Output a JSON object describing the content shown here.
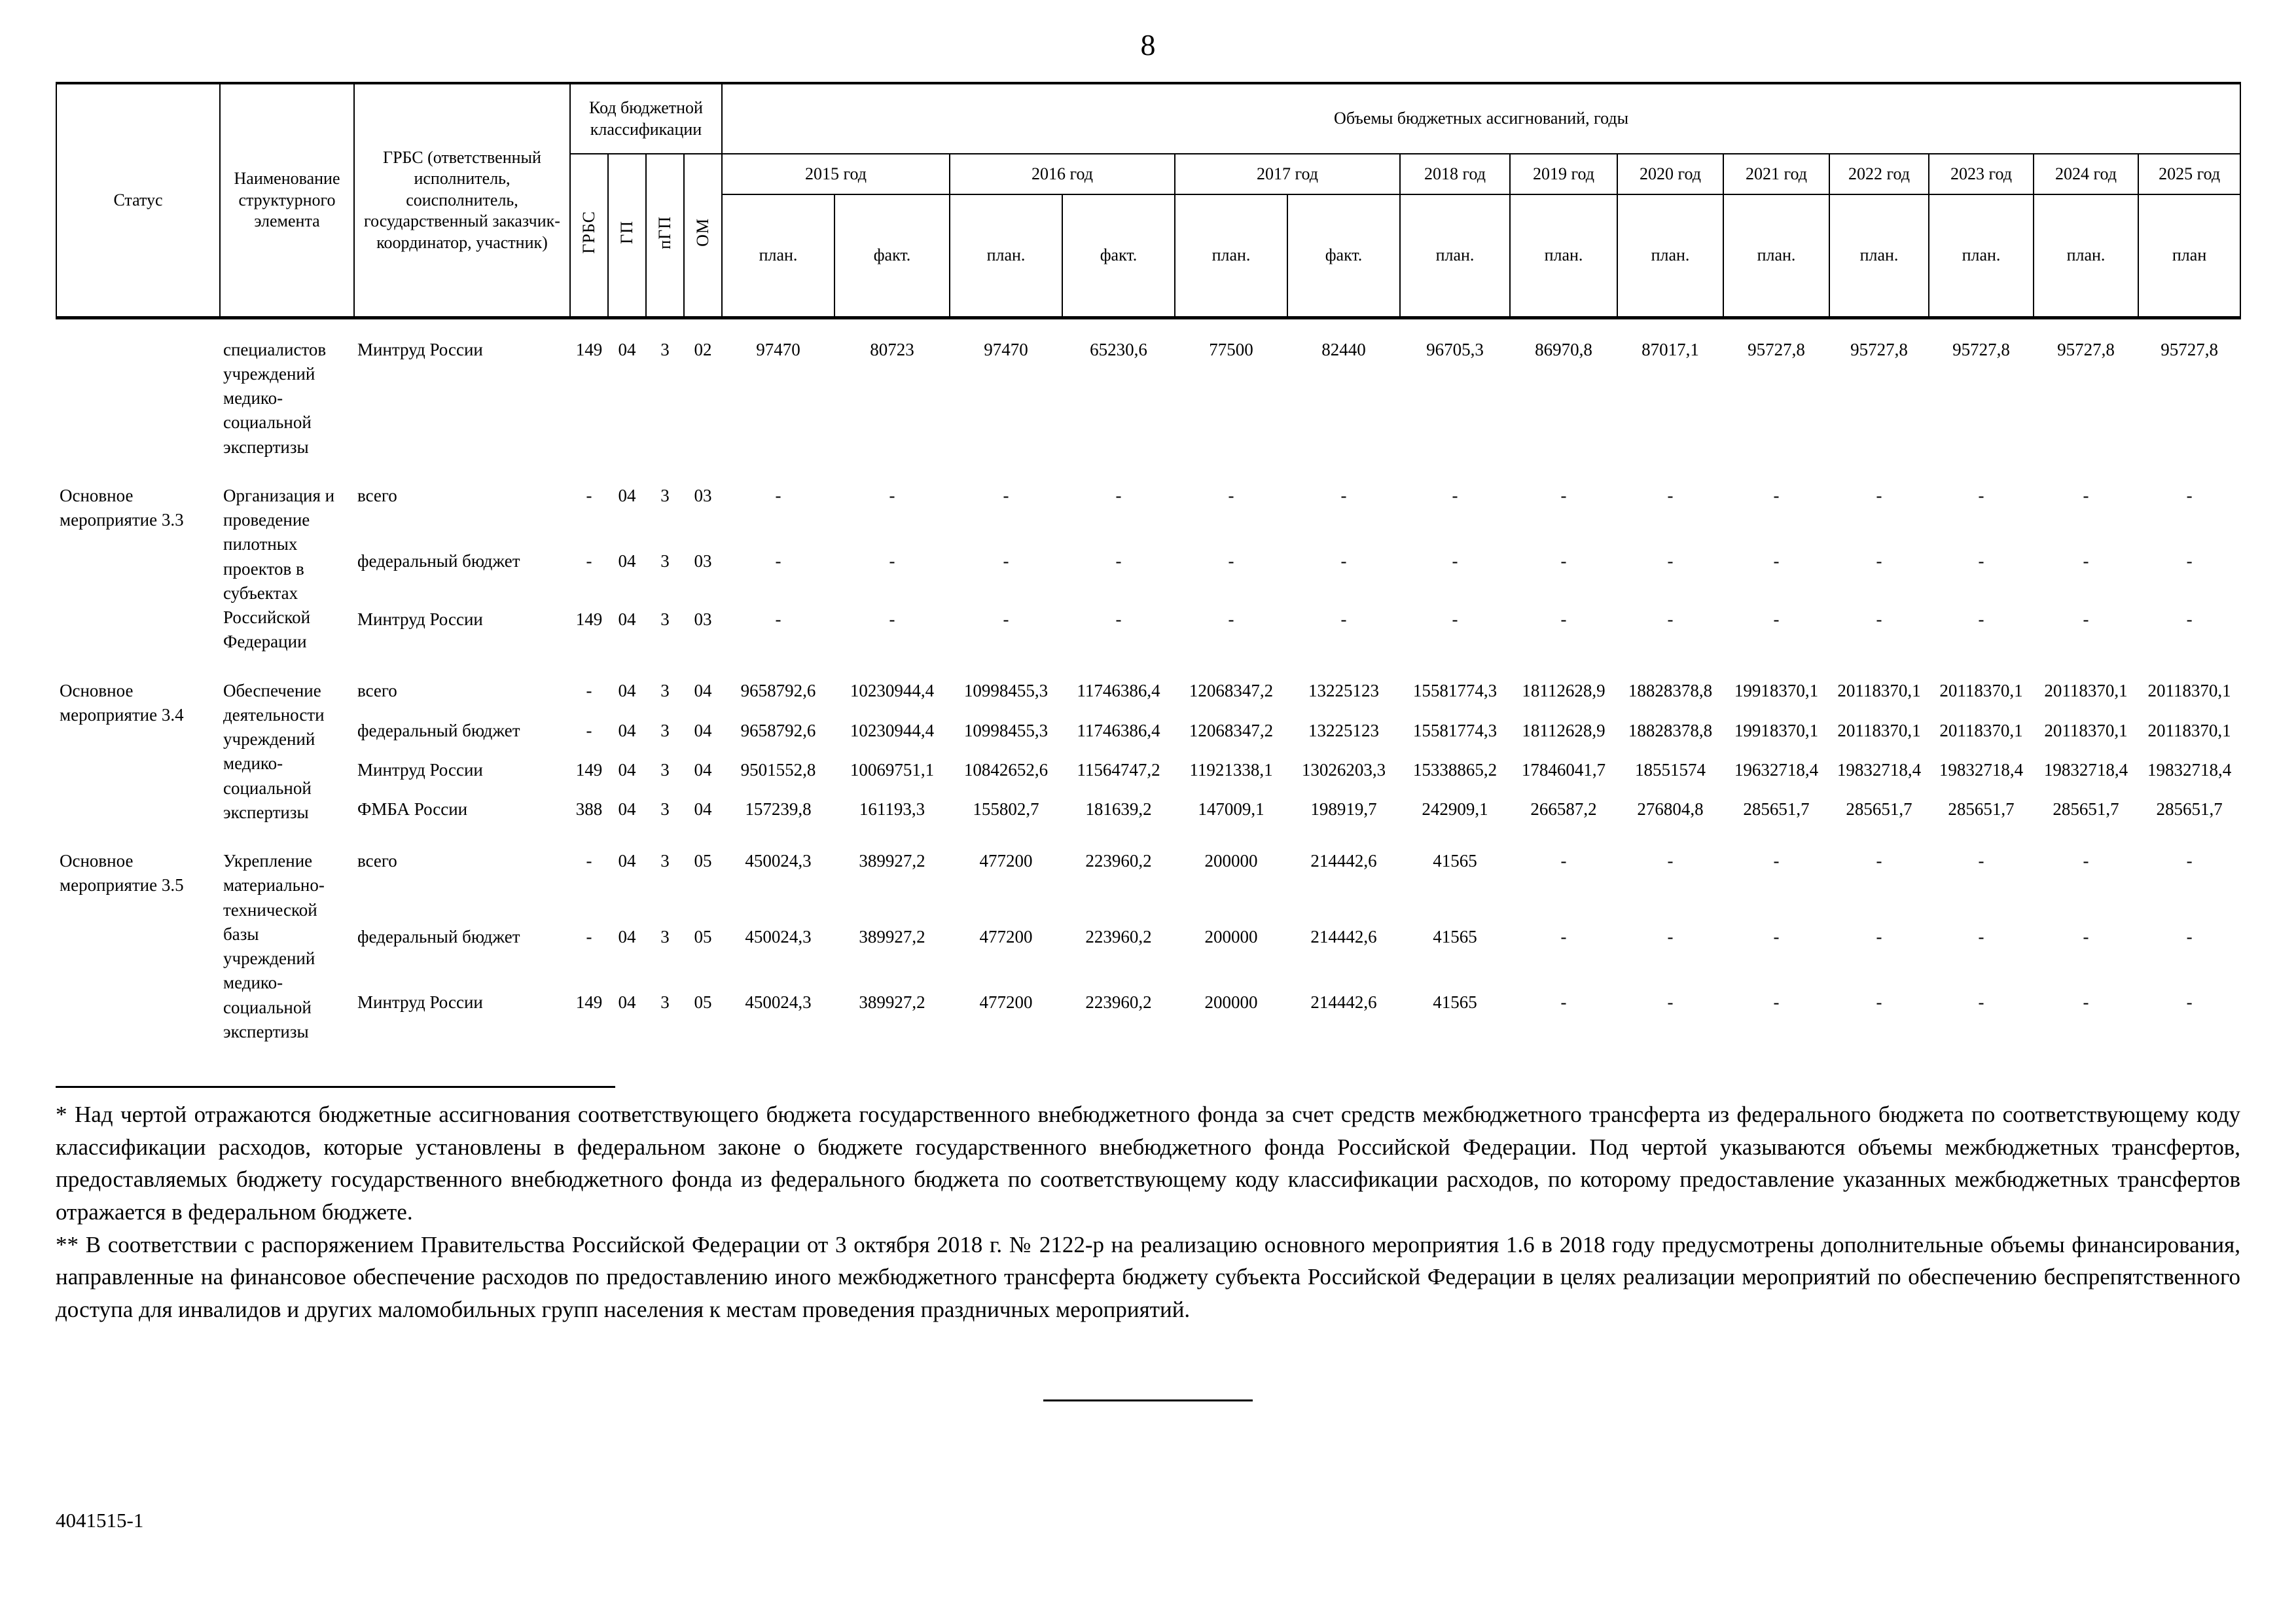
{
  "page": {
    "number": "8",
    "doc_code": "4041515-1"
  },
  "colors": {
    "ink": "#000000",
    "paper": "#ffffff"
  },
  "table": {
    "headers": {
      "status": "Статус",
      "name": "Наименование структурного элемента",
      "grbs": "ГРБС (ответственный исполнитель, соисполнитель, государственный заказчик-координатор, участник)",
      "code_group": "Код бюджетной классификации",
      "code_cols": [
        "ГРБС",
        "ГП",
        "пГП",
        "ОМ"
      ],
      "volumes_group": "Объемы бюджетных ассигнований, годы",
      "year_groups": [
        {
          "label": "2015 год",
          "cols": [
            "план.",
            "факт."
          ]
        },
        {
          "label": "2016 год",
          "cols": [
            "план.",
            "факт."
          ]
        },
        {
          "label": "2017 год",
          "cols": [
            "план.",
            "факт."
          ]
        },
        {
          "label": "2018 год",
          "cols": [
            "план."
          ]
        },
        {
          "label": "2019 год",
          "cols": [
            "план."
          ]
        },
        {
          "label": "2020 год",
          "cols": [
            "план."
          ]
        },
        {
          "label": "2021 год",
          "cols": [
            "план."
          ]
        },
        {
          "label": "2022 год",
          "cols": [
            "план."
          ]
        },
        {
          "label": "2023 год",
          "cols": [
            "план."
          ]
        },
        {
          "label": "2024 год",
          "cols": [
            "план."
          ]
        },
        {
          "label": "2025 год",
          "cols": [
            "план"
          ]
        }
      ]
    },
    "groups": [
      {
        "status": "",
        "name": "специалистов учреждений медико-социальной экспертизы",
        "rows": [
          {
            "grbs": "Минтруд России",
            "codes": [
              "149",
              "04",
              "3",
              "02"
            ],
            "values": [
              "97470",
              "80723",
              "97470",
              "65230,6",
              "77500",
              "82440",
              "96705,3",
              "86970,8",
              "87017,1",
              "95727,8",
              "95727,8",
              "95727,8",
              "95727,8",
              "95727,8"
            ]
          }
        ]
      },
      {
        "status": "Основное мероприятие 3.3",
        "name": "Организация и проведение пилотных проектов в субъектах Российской Федерации",
        "rows": [
          {
            "grbs": "всего",
            "codes": [
              "-",
              "04",
              "3",
              "03"
            ],
            "values": [
              "-",
              "-",
              "-",
              "-",
              "-",
              "-",
              "-",
              "-",
              "-",
              "-",
              "-",
              "-",
              "-",
              "-"
            ]
          },
          {
            "grbs": "федеральный бюджет",
            "codes": [
              "-",
              "04",
              "3",
              "03"
            ],
            "values": [
              "-",
              "-",
              "-",
              "-",
              "-",
              "-",
              "-",
              "-",
              "-",
              "-",
              "-",
              "-",
              "-",
              "-"
            ]
          },
          {
            "grbs": "Минтруд России",
            "codes": [
              "149",
              "04",
              "3",
              "03"
            ],
            "values": [
              "-",
              "-",
              "-",
              "-",
              "-",
              "-",
              "-",
              "-",
              "-",
              "-",
              "-",
              "-",
              "-",
              "-"
            ]
          }
        ]
      },
      {
        "status": "Основное мероприятие 3.4",
        "name": "Обеспечение деятельности учреждений медико-социальной экспертизы",
        "rows": [
          {
            "grbs": "всего",
            "codes": [
              "-",
              "04",
              "3",
              "04"
            ],
            "values": [
              "9658792,6",
              "10230944,4",
              "10998455,3",
              "11746386,4",
              "12068347,2",
              "13225123",
              "15581774,3",
              "18112628,9",
              "18828378,8",
              "19918370,1",
              "20118370,1",
              "20118370,1",
              "20118370,1",
              "20118370,1"
            ]
          },
          {
            "grbs": "федеральный бюджет",
            "codes": [
              "-",
              "04",
              "3",
              "04"
            ],
            "values": [
              "9658792,6",
              "10230944,4",
              "10998455,3",
              "11746386,4",
              "12068347,2",
              "13225123",
              "15581774,3",
              "18112628,9",
              "18828378,8",
              "19918370,1",
              "20118370,1",
              "20118370,1",
              "20118370,1",
              "20118370,1"
            ]
          },
          {
            "grbs": "Минтруд России",
            "codes": [
              "149",
              "04",
              "3",
              "04"
            ],
            "values": [
              "9501552,8",
              "10069751,1",
              "10842652,6",
              "11564747,2",
              "11921338,1",
              "13026203,3",
              "15338865,2",
              "17846041,7",
              "18551574",
              "19632718,4",
              "19832718,4",
              "19832718,4",
              "19832718,4",
              "19832718,4"
            ]
          },
          {
            "grbs": "ФМБА России",
            "codes": [
              "388",
              "04",
              "3",
              "04"
            ],
            "values": [
              "157239,8",
              "161193,3",
              "155802,7",
              "181639,2",
              "147009,1",
              "198919,7",
              "242909,1",
              "266587,2",
              "276804,8",
              "285651,7",
              "285651,7",
              "285651,7",
              "285651,7",
              "285651,7"
            ]
          }
        ]
      },
      {
        "status": "Основное мероприятие 3.5",
        "name": "Укрепление материально-технической базы учреждений медико-социальной экспертизы",
        "rows": [
          {
            "grbs": "всего",
            "codes": [
              "-",
              "04",
              "3",
              "05"
            ],
            "values": [
              "450024,3",
              "389927,2",
              "477200",
              "223960,2",
              "200000",
              "214442,6",
              "41565",
              "-",
              "-",
              "-",
              "-",
              "-",
              "-",
              "-"
            ]
          },
          {
            "grbs": "федеральный бюджет",
            "codes": [
              "-",
              "04",
              "3",
              "05"
            ],
            "values": [
              "450024,3",
              "389927,2",
              "477200",
              "223960,2",
              "200000",
              "214442,6",
              "41565",
              "-",
              "-",
              "-",
              "-",
              "-",
              "-",
              "-"
            ]
          },
          {
            "grbs": "Минтруд России",
            "codes": [
              "149",
              "04",
              "3",
              "05"
            ],
            "values": [
              "450024,3",
              "389927,2",
              "477200",
              "223960,2",
              "200000",
              "214442,6",
              "41565",
              "-",
              "-",
              "-",
              "-",
              "-",
              "-",
              "-"
            ]
          }
        ]
      }
    ]
  },
  "footnotes": {
    "first": "* Над чертой отражаются бюджетные ассигнования соответствующего бюджета государственного внебюджетного фонда за счет средств межбюджетного трансферта из федерального бюджета по соответствующему коду классификации расходов, которые установлены в федеральном законе о бюджете государственного внебюджетного фонда Российской Федерации. Под чертой указываются объемы межбюджетных трансфертов, предоставляемых бюджету государственного внебюджетного фонда из федерального бюджета по соответствующему коду классификации расходов, по которому предоставление указанных межбюджетных трансфертов отражается в федеральном бюджете.",
    "second": "** В соответствии с распоряжением Правительства Российской Федерации от 3 октября 2018 г. № 2122-р на реализацию основного мероприятия 1.6 в 2018 году предусмотрены дополнительные объемы финансирования, направленные на финансовое обеспечение расходов по предоставлению иного межбюджетного трансферта бюджету субъекта Российской Федерации в целях реализации мероприятий по обеспечению беспрепятственного доступа для инвалидов и других маломобильных групп населения к местам проведения праздничных мероприятий."
  }
}
